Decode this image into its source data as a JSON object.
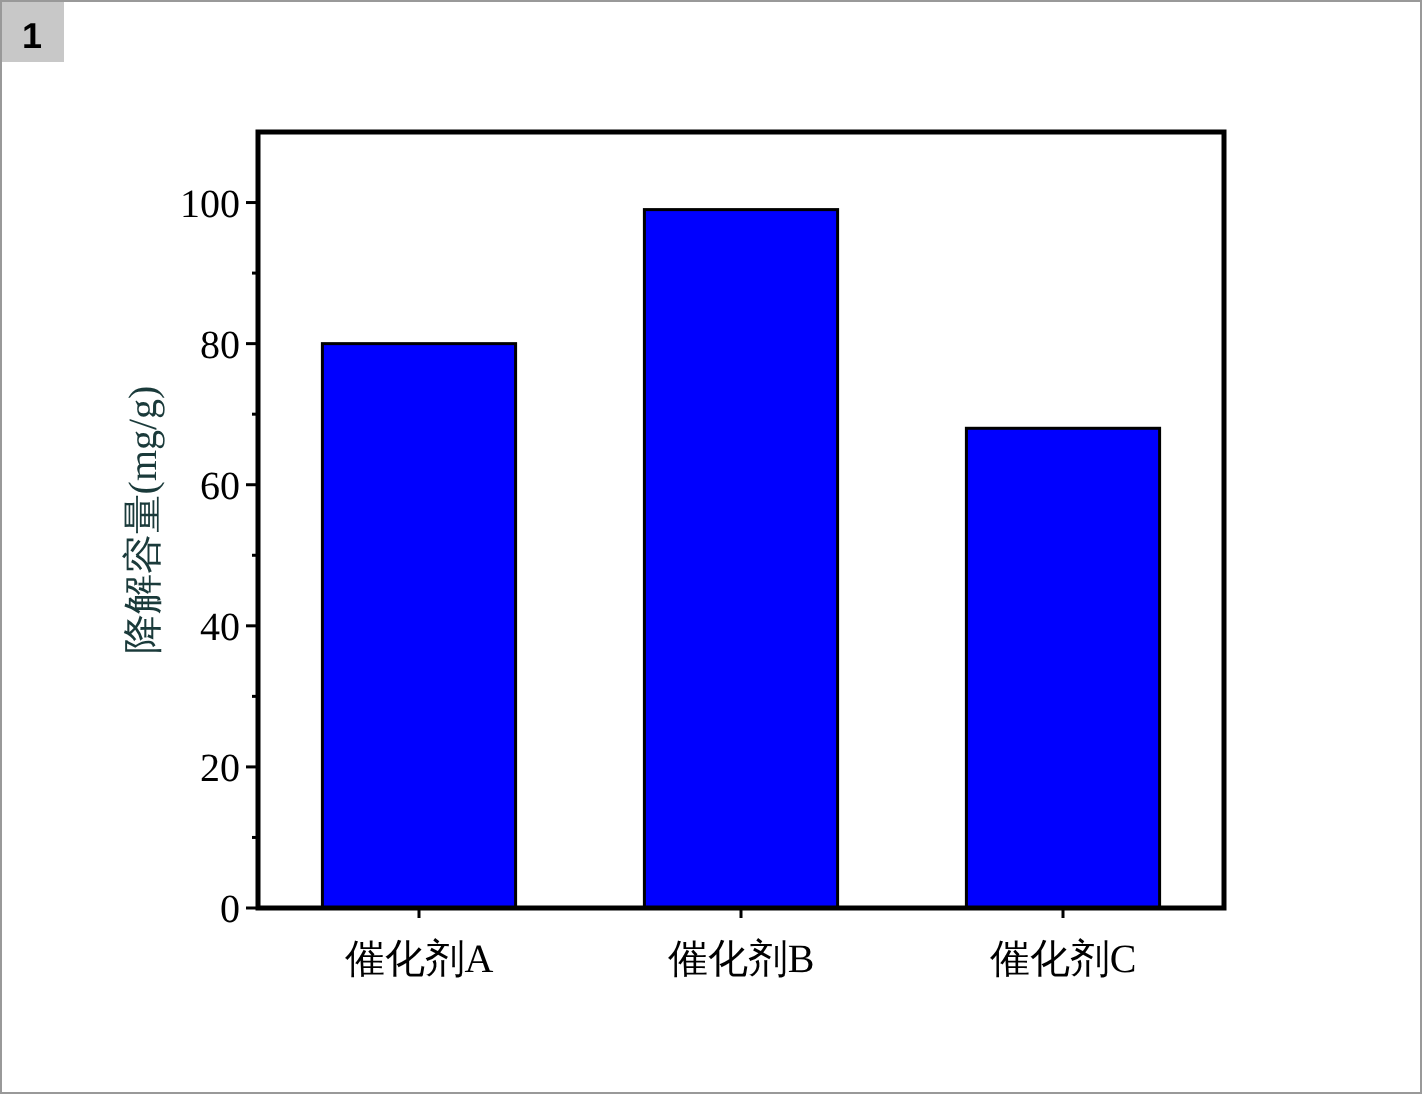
{
  "chart_data": {
    "type": "bar",
    "ylabel": "降解容量(mg/g)",
    "categories": [
      "催化剂A",
      "催化剂B",
      "催化剂C"
    ],
    "values": [
      80,
      99,
      68
    ],
    "color": "#0000ff",
    "ylim": [
      0,
      110
    ],
    "yticks": [
      0,
      20,
      40,
      60,
      80,
      100
    ],
    "grid": false,
    "annotations": [
      "1"
    ]
  }
}
